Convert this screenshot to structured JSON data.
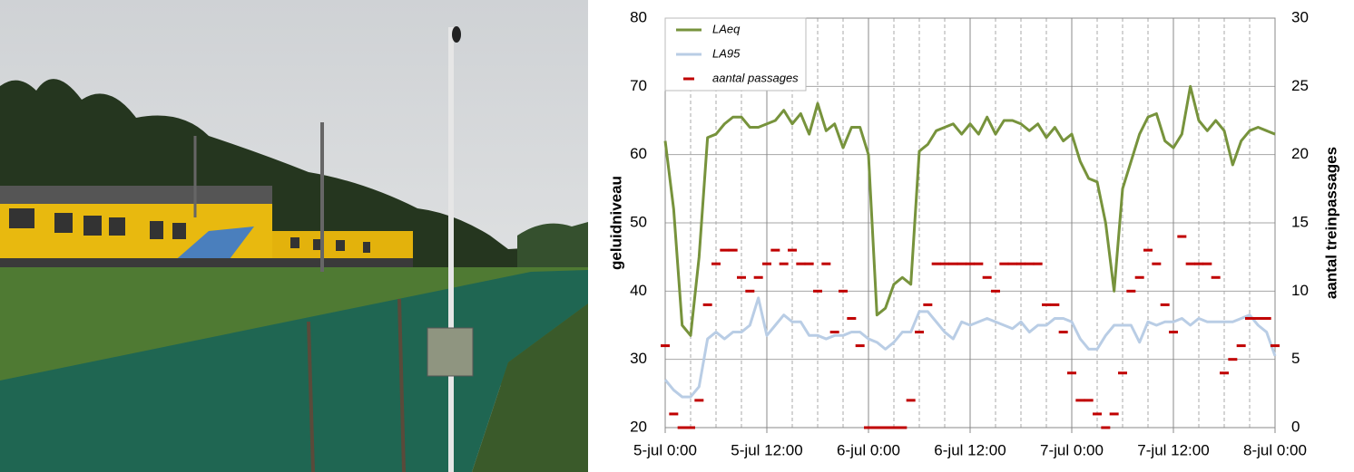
{
  "chart_data": {
    "type": "line",
    "y_label": "geluidniveau",
    "y2_label": "aantal treinpassages",
    "x": [
      0,
      1,
      2,
      3,
      4,
      5,
      6,
      7,
      8,
      9,
      10,
      11,
      12,
      13,
      14,
      15,
      16,
      17,
      18,
      19,
      20,
      21,
      22,
      23,
      24,
      25,
      26,
      27,
      28,
      29,
      30,
      31,
      32,
      33,
      34,
      35,
      36,
      37,
      38,
      39,
      40,
      41,
      42,
      43,
      44,
      45,
      46,
      47,
      48,
      49,
      50,
      51,
      52,
      53,
      54,
      55,
      56,
      57,
      58,
      59,
      60,
      61,
      62,
      63,
      64,
      65,
      66,
      67,
      68,
      69,
      70,
      71,
      72
    ],
    "xlim": [
      0,
      72
    ],
    "xticks": [
      {
        "value": 0,
        "label": "5-jul 0:00"
      },
      {
        "value": 12,
        "label": "5-jul 12:00"
      },
      {
        "value": 24,
        "label": "6-jul 0:00"
      },
      {
        "value": 36,
        "label": "6-jul 12:00"
      },
      {
        "value": 48,
        "label": "7-jul 0:00"
      },
      {
        "value": 60,
        "label": "7-jul 12:00"
      },
      {
        "value": 72,
        "label": "8-jul 0:00"
      }
    ],
    "ylim": [
      20,
      80
    ],
    "yticks": [
      20,
      30,
      40,
      50,
      60,
      70,
      80
    ],
    "y2lim": [
      0,
      30
    ],
    "y2ticks": [
      0,
      5,
      10,
      15,
      20,
      25,
      30
    ],
    "grid": true,
    "legend": "upper left",
    "series": [
      {
        "name": "LAeq",
        "color": "#77933c",
        "type": "line",
        "values": [
          62,
          52,
          35,
          33.5,
          45,
          62.5,
          63,
          64.5,
          65.5,
          65.5,
          64,
          64,
          64.5,
          65,
          66.5,
          64.5,
          66,
          63,
          67.5,
          63.5,
          64.5,
          61,
          64,
          64,
          60,
          36.5,
          37.5,
          41,
          42,
          41,
          60.5,
          61.5,
          63.5,
          64,
          64.5,
          63,
          64.5,
          63,
          65.5,
          63,
          65,
          65,
          64.5,
          63.5,
          64.5,
          62.5,
          64,
          62,
          63,
          59,
          56.5,
          56,
          50,
          40,
          55,
          59,
          63,
          65.5,
          66,
          62,
          61,
          63,
          70,
          65,
          63.5,
          65,
          63.5,
          58.5,
          62,
          63.5,
          64,
          63.5,
          63
        ]
      },
      {
        "name": "LA95",
        "color": "#b9cde5",
        "type": "line",
        "values": [
          27,
          25.5,
          24.5,
          24.5,
          26,
          33,
          34,
          33,
          34,
          34,
          35,
          39,
          33.5,
          35,
          36.5,
          35.5,
          35.5,
          33.5,
          33.5,
          33,
          33.5,
          33.5,
          34,
          34,
          33,
          32.5,
          31.5,
          32.5,
          34,
          34,
          37,
          37,
          35.5,
          34,
          33,
          35.5,
          35,
          35.5,
          36,
          35.5,
          35,
          34.5,
          35.5,
          34,
          35,
          35,
          36,
          36,
          35.5,
          33,
          31.5,
          31.5,
          33.5,
          35,
          35,
          35,
          32.5,
          35.5,
          35,
          35.5,
          35.5,
          36,
          35,
          36,
          35.5,
          35.5,
          35.5,
          35.5,
          36,
          36.5,
          35,
          34,
          30.5
        ]
      },
      {
        "name": "aantal passages",
        "color": "#c00000",
        "type": "dash",
        "axis": "y2",
        "values": [
          6,
          1,
          0,
          0,
          2,
          9,
          12,
          13,
          13,
          11,
          10,
          11,
          12,
          13,
          12,
          13,
          12,
          12,
          10,
          12,
          7,
          10,
          8,
          6,
          0,
          0,
          0,
          0,
          0,
          2,
          7,
          9,
          12,
          12,
          12,
          12,
          12,
          12,
          11,
          10,
          12,
          12,
          12,
          12,
          12,
          9,
          9,
          7,
          4,
          2,
          2,
          1,
          0,
          1,
          4,
          10,
          11,
          13,
          12,
          9,
          7,
          14,
          12,
          12,
          12,
          11,
          4,
          5,
          6,
          8,
          8,
          8,
          6
        ]
      }
    ]
  }
}
